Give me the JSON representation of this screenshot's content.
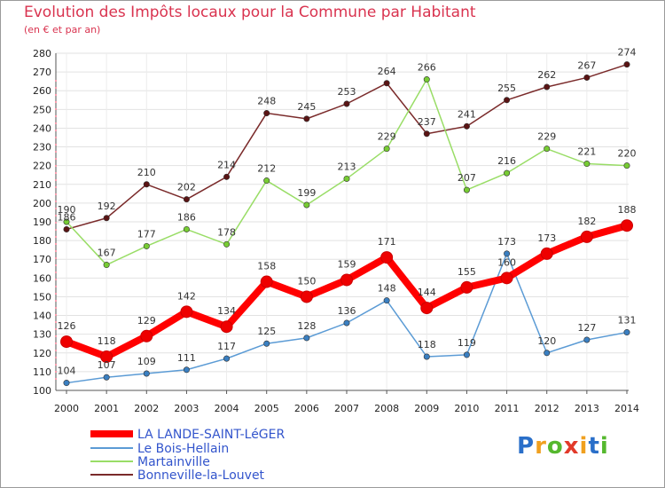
{
  "title": "Evolution des Impôts locaux pour la Commune par Habitant",
  "subtitle": "(en € et par an)",
  "brand": "Proxiti",
  "chart_data": {
    "type": "line",
    "title": "Evolution des Impôts locaux pour la Commune par Habitant",
    "subtitle": "(en € et par an)",
    "xlabel": "",
    "ylabel": "",
    "ylim": [
      100,
      280
    ],
    "yticks": [
      100,
      110,
      120,
      130,
      140,
      150,
      160,
      170,
      180,
      190,
      200,
      210,
      220,
      230,
      240,
      250,
      260,
      270,
      280
    ],
    "x": [
      2000,
      2001,
      2002,
      2003,
      2004,
      2005,
      2006,
      2007,
      2008,
      2009,
      2010,
      2011,
      2012,
      2013,
      2014
    ],
    "grid": true,
    "legend": "bottom-left",
    "series": [
      {
        "name": "Bonneville-la-Louvet",
        "color": "#7a2a2a",
        "marker": "#5a1414",
        "values": [
          186,
          192,
          210,
          202,
          214,
          248,
          245,
          253,
          264,
          237,
          241,
          255,
          262,
          267,
          274
        ]
      },
      {
        "name": "Martainville",
        "color": "#99dd66",
        "marker": "#77cc33",
        "values": [
          190,
          167,
          177,
          186,
          178,
          212,
          199,
          213,
          229,
          266,
          207,
          216,
          229,
          221,
          220
        ]
      },
      {
        "name": "Le Bois-Hellain",
        "color": "#5b9bd5",
        "marker": "#3a7fc1",
        "values": [
          104,
          107,
          109,
          111,
          117,
          125,
          128,
          136,
          148,
          118,
          119,
          173,
          120,
          127,
          131
        ]
      },
      {
        "name": "LA LANDE-SAINT-LéGER",
        "color": "#ff0000",
        "marker": "#ee0000",
        "values": [
          126,
          118,
          129,
          142,
          134,
          158,
          150,
          159,
          171,
          144,
          155,
          160,
          173,
          182,
          188
        ]
      }
    ]
  }
}
